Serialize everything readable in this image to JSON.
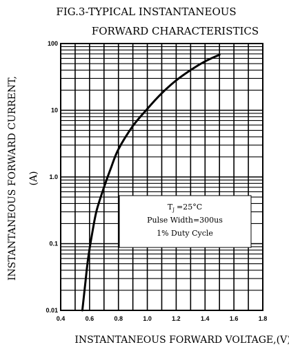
{
  "chart_data": {
    "type": "line",
    "title_line1": "FIG.3-TYPICAL INSTANTANEOUS",
    "title_line2": "FORWARD CHARACTERISTICS",
    "xlabel": "INSTANTANEOUS FORWARD VOLTAGE,(V)",
    "ylabel_line1": "INSTANTANEOUS FORWARD CURRENT,",
    "ylabel_line2": "(A)",
    "x_scale": "linear",
    "y_scale": "log",
    "xlim": [
      0.4,
      1.8
    ],
    "ylim": [
      0.01,
      100
    ],
    "x_ticks": [
      0.4,
      0.6,
      0.8,
      1.0,
      1.2,
      1.4,
      1.6,
      1.8
    ],
    "x_tick_labels": [
      "0.4",
      "0.6",
      "0.8",
      "1.0",
      "1.2",
      "1.4",
      "1.6",
      "1.8"
    ],
    "y_ticks": [
      0.01,
      0.1,
      1,
      10,
      100
    ],
    "y_tick_labels": [
      "0.01",
      "0.1",
      "1.0",
      "10",
      "100"
    ],
    "grid": true,
    "annotation": {
      "line1_T": "T",
      "line1_sub": "J",
      "line1_rest": "=25°C",
      "line2": "Pulse Width=300us",
      "line3": "1% Duty Cycle"
    },
    "series": [
      {
        "x": [
          0.55,
          0.57,
          0.59,
          0.62,
          0.65,
          0.7,
          0.75,
          0.8,
          0.9,
          1.0,
          1.1,
          1.2,
          1.3,
          1.4,
          1.5
        ],
        "y": [
          0.01,
          0.025,
          0.06,
          0.15,
          0.32,
          0.7,
          1.4,
          2.6,
          5.8,
          10.5,
          18,
          28,
          40,
          54,
          68
        ]
      }
    ]
  }
}
